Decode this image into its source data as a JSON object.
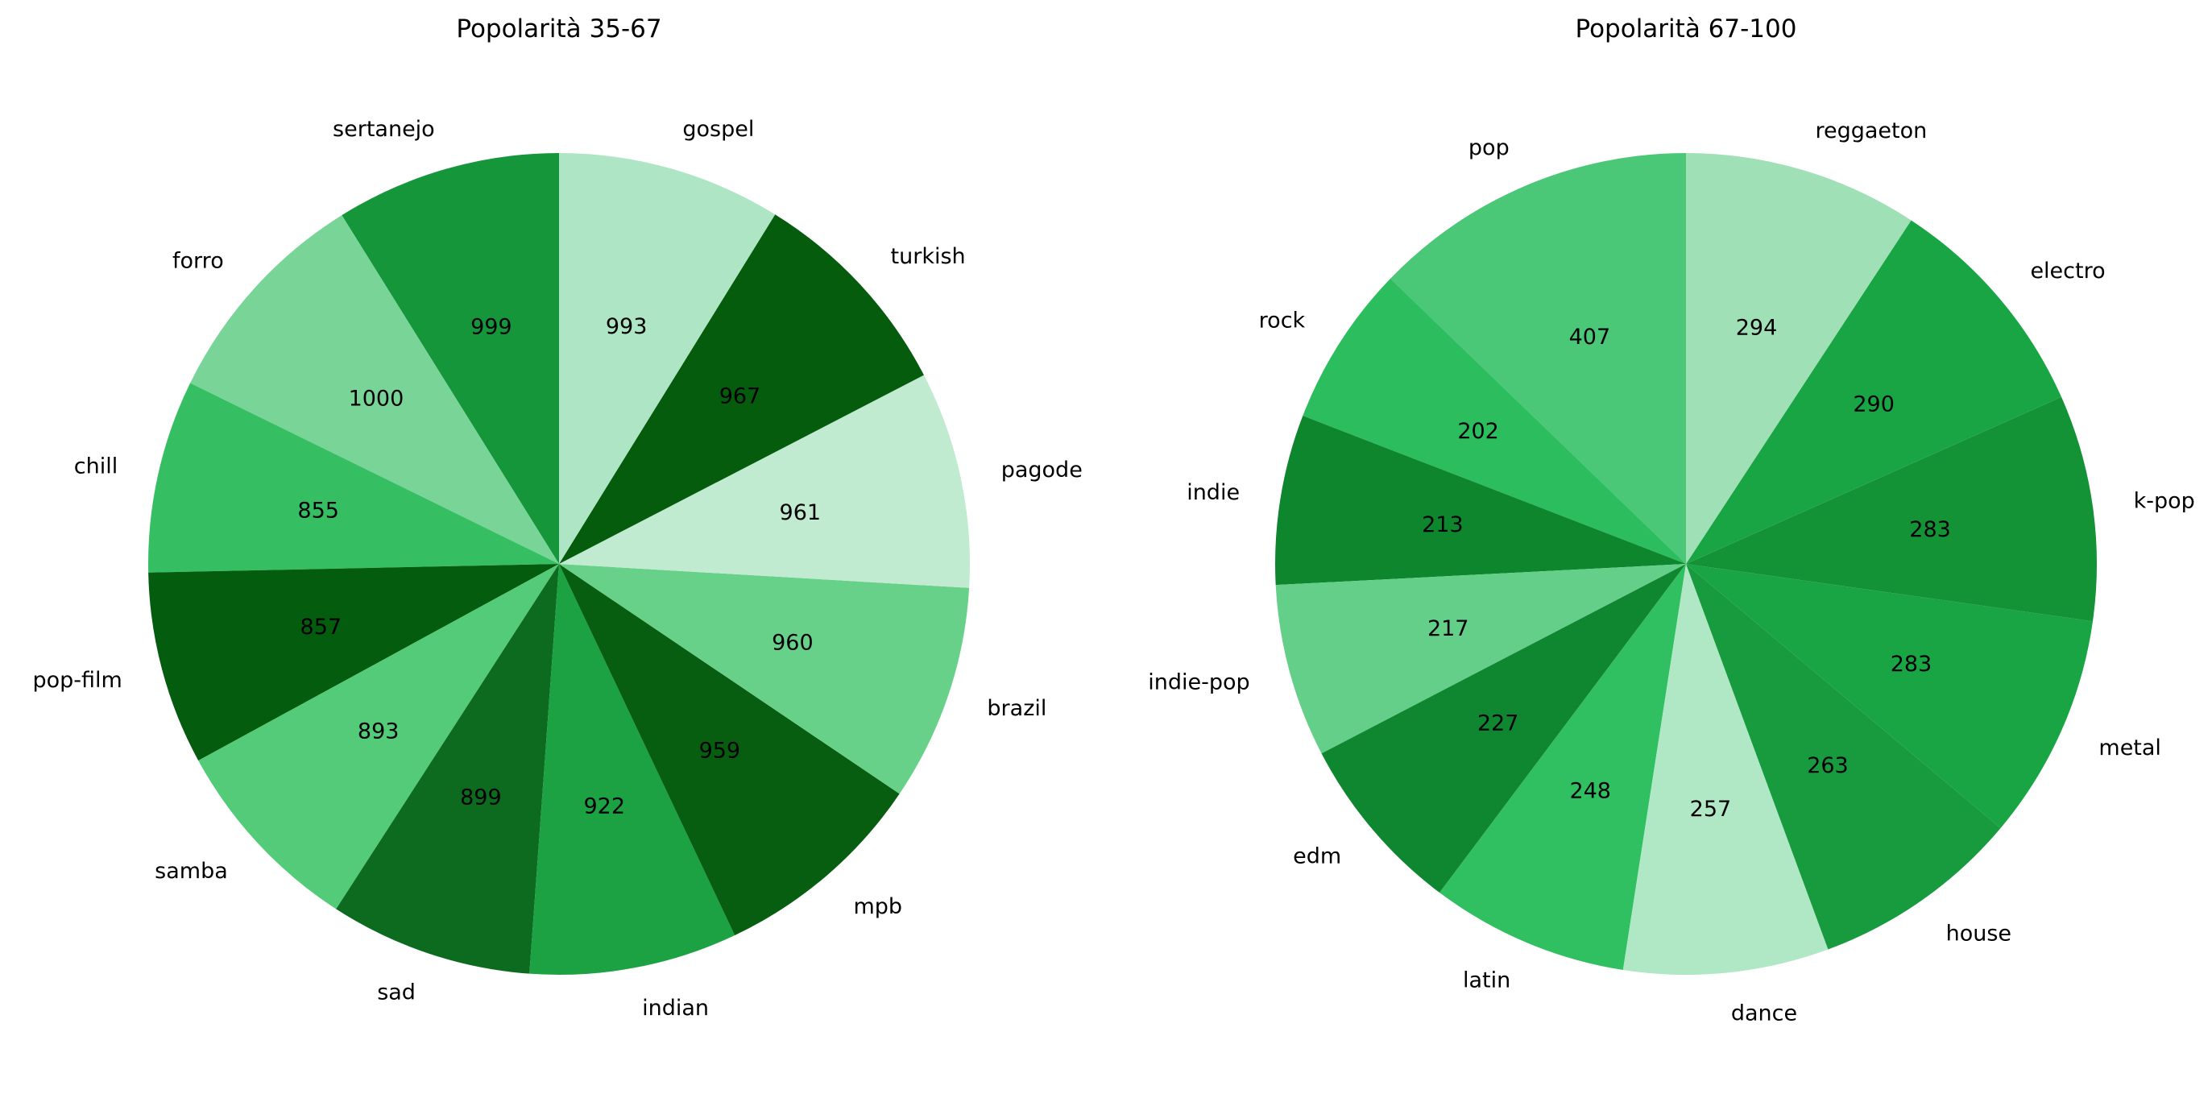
{
  "chart_data": [
    {
      "type": "pie",
      "title": "Popolarità 35-67",
      "categories": [
        "sertanejo",
        "forro",
        "chill",
        "pop-film",
        "samba",
        "sad",
        "indian",
        "mpb",
        "brazil",
        "pagode",
        "turkish",
        "gospel"
      ],
      "values": [
        999,
        1000,
        855,
        857,
        893,
        899,
        922,
        959,
        960,
        961,
        967,
        993
      ],
      "value_labels": [
        "999",
        "1000",
        "855",
        "857",
        "893",
        "899",
        "922",
        "959",
        "960",
        "961",
        "967",
        "993"
      ],
      "colors": [
        "#16963a",
        "#78d597",
        "#36bf62",
        "#045c0e",
        "#54cb79",
        "#0c6b1e",
        "#1ca143",
        "#075e10",
        "#68d189",
        "#c0ebd0",
        "#055c0d",
        "#aee5c4"
      ],
      "start_angle_deg": 90,
      "direction": "counterclockwise",
      "legend": "none"
    },
    {
      "type": "pie",
      "title": "Popolarità 67-100",
      "categories": [
        "pop",
        "rock",
        "indie",
        "indie-pop",
        "edm",
        "latin",
        "dance",
        "house",
        "metal",
        "k-pop",
        "electro",
        "reggaeton"
      ],
      "values": [
        407,
        202,
        213,
        217,
        227,
        248,
        257,
        263,
        283,
        283,
        290,
        294
      ],
      "value_labels": [
        "407",
        "202",
        "213",
        "217",
        "227",
        "248",
        "257",
        "263",
        "283",
        "283",
        "290",
        "294"
      ],
      "colors": [
        "#4ac877",
        "#2cbd5e",
        "#0e862e",
        "#64cf88",
        "#0f8630",
        "#30bf61",
        "#b0e7c4",
        "#189b3f",
        "#1aa545",
        "#149336",
        "#1aa545",
        "#9fe0b6"
      ],
      "start_angle_deg": 90,
      "direction": "counterclockwise",
      "legend": "none"
    }
  ]
}
